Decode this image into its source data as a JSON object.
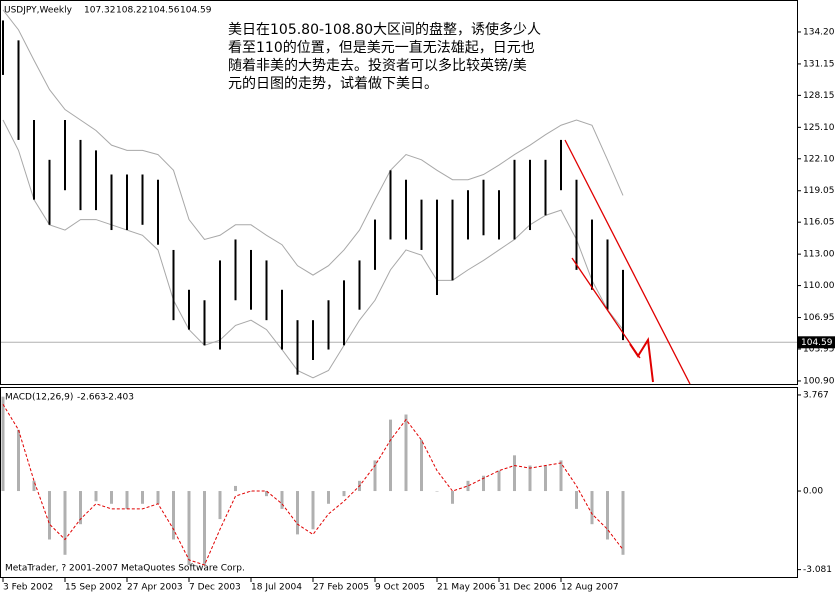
{
  "chart_data": [
    {
      "type": "ohlc",
      "title": "USDJPY,Weekly",
      "header_values": [
        107.32,
        108.22,
        104.56,
        104.59
      ],
      "annotation": [
        "美日在105.80-108.80大区间的盘整，诱使多少人",
        "看至110的位置，但是美元一直无法雄起，日元也",
        "随着非美的大势走去。投资者可以多比较英镑/美",
        "元的日图的走势，试着做下美日。"
      ],
      "categories": [
        "3 Feb 2002",
        null,
        null,
        null,
        "15 Sep 2002",
        null,
        null,
        null,
        "27 Apr 2003",
        null,
        null,
        null,
        "7 Dec 2003",
        null,
        null,
        null,
        "18 Jul 2004",
        null,
        null,
        null,
        "27 Feb 2005",
        null,
        null,
        null,
        "9 Oct 2005",
        null,
        null,
        null,
        "21 May 2006",
        null,
        null,
        null,
        "31 Dec 2006",
        null,
        null,
        null,
        "12 Aug 2007",
        null,
        null,
        null,
        null
      ],
      "high": [
        135.3,
        133.4,
        125.8,
        122.0,
        125.8,
        123.9,
        122.9,
        120.6,
        120.6,
        120.6,
        120.1,
        113.4,
        109.6,
        108.6,
        112.4,
        114.4,
        113.4,
        112.4,
        109.6,
        106.7,
        106.7,
        108.6,
        110.5,
        112.4,
        116.3,
        121.0,
        120.1,
        118.2,
        118.2,
        118.2,
        119.1,
        120.1,
        119.1,
        122.0,
        122.0,
        122.0,
        123.9,
        120.1,
        116.3,
        114.4,
        111.5
      ],
      "low": [
        130.1,
        123.9,
        118.2,
        115.8,
        119.1,
        117.2,
        117.2,
        115.3,
        115.3,
        115.8,
        113.9,
        106.7,
        105.8,
        104.3,
        103.9,
        108.6,
        107.7,
        106.7,
        103.9,
        101.5,
        102.9,
        103.9,
        104.3,
        107.7,
        111.5,
        114.4,
        114.4,
        113.4,
        109.1,
        110.5,
        114.4,
        114.8,
        114.4,
        114.4,
        115.3,
        116.7,
        119.1,
        111.5,
        109.6,
        107.7,
        104.8
      ],
      "upper_band": [
        136.3,
        134.4,
        131.5,
        128.7,
        126.8,
        125.8,
        124.8,
        123.4,
        122.9,
        122.9,
        122.5,
        121.0,
        116.3,
        114.4,
        114.8,
        115.8,
        115.8,
        114.8,
        113.9,
        111.9,
        111.0,
        111.9,
        113.4,
        115.3,
        118.2,
        121.0,
        122.5,
        122.0,
        121.0,
        120.1,
        120.1,
        120.6,
        121.5,
        122.5,
        123.4,
        124.4,
        125.3,
        125.8,
        125.3,
        122.0,
        118.6
      ],
      "lower_band": [
        125.8,
        122.9,
        118.2,
        115.8,
        115.3,
        116.3,
        116.3,
        115.8,
        115.3,
        114.8,
        113.4,
        108.6,
        105.8,
        104.3,
        104.8,
        106.2,
        106.7,
        105.8,
        103.9,
        101.9,
        101.2,
        101.9,
        104.3,
        106.7,
        108.6,
        111.5,
        113.4,
        112.9,
        110.5,
        110.5,
        111.5,
        112.4,
        113.4,
        114.4,
        115.8,
        116.7,
        117.2,
        114.4,
        110.5,
        107.7,
        105.8
      ],
      "current_price": 104.59,
      "ylim": [
        100.61,
        137.25
      ],
      "yticks": [
        {
          "value": 134.2,
          "label": "134.20"
        },
        131.15,
        128.15,
        {
          "value": 125.1,
          "label": "125.10"
        },
        {
          "value": 122.1,
          "label": "122.10"
        },
        119.05,
        116.05,
        {
          "value": 113,
          "label": "113.00"
        },
        {
          "value": 110,
          "label": "110.00"
        },
        106.95,
        103.95,
        {
          "value": 100.9,
          "label": "100.90"
        }
      ],
      "color": "#000000",
      "band_color": "#a8a8a8"
    },
    {
      "type": "macd",
      "title": "MACD(12,26,9)",
      "header_values": [
        -2.663,
        -2.403
      ],
      "note": "MetaTrader, ? 2001-2007 MetaQuotes Software Corp.",
      "values": [
        3.7,
        2.4,
        0.4,
        -1.9,
        -2.5,
        -1.3,
        -0.4,
        -0.5,
        -0.7,
        -0.5,
        -0.5,
        -1.9,
        -2.9,
        -2.9,
        -1.1,
        0.2,
        0.0,
        -0.2,
        -0.7,
        -1.7,
        -1.5,
        -0.5,
        -0.2,
        0.4,
        1.2,
        2.8,
        3.0,
        2.0,
        0.0,
        -0.5,
        0.4,
        0.6,
        0.8,
        1.4,
        1.0,
        1.0,
        1.2,
        -0.7,
        -1.3,
        -1.9,
        -2.5
      ],
      "signal": [
        3.4,
        2.4,
        0.4,
        -1.3,
        -1.9,
        -1.1,
        -0.5,
        -0.7,
        -0.7,
        -0.7,
        -0.5,
        -1.5,
        -2.7,
        -2.9,
        -1.5,
        -0.2,
        0.0,
        0.0,
        -0.5,
        -1.3,
        -1.7,
        -0.9,
        -0.4,
        0.2,
        1.0,
        2.0,
        2.8,
        2.0,
        0.8,
        0.0,
        0.2,
        0.5,
        0.8,
        1.0,
        0.9,
        1.0,
        1.1,
        0.2,
        -0.9,
        -1.5,
        -2.3
      ],
      "ylim": [
        -3.41,
        4.04
      ],
      "yticks": [
        3.767,
        {
          "value": 0,
          "label": "0.00"
        },
        -3.081
      ],
      "color": "#b0b0b0",
      "signal_color": "#e00000"
    }
  ]
}
